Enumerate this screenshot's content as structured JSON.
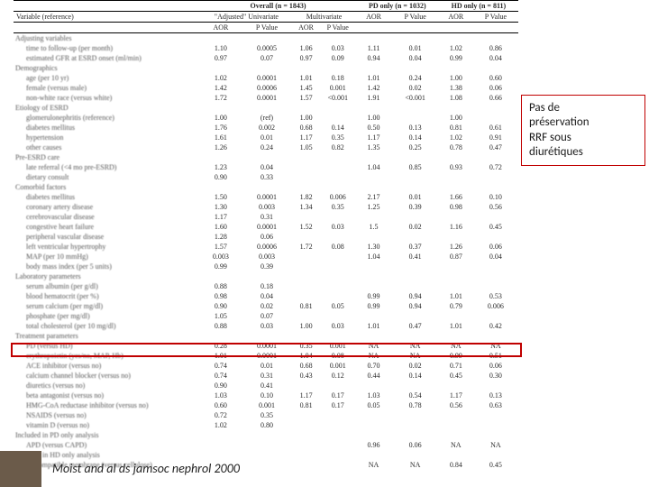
{
  "header": {
    "overall_label": "Overall (n = 1843)",
    "pd_label": "PD only (n = 1032)",
    "hd_label": "HD only (n = 811)",
    "variable_header": "Variable (reference)",
    "adjusted_label": "\"Adjusted\" Univariate",
    "multivariate_label": "Multivariate",
    "aor": "AOR",
    "pvalue": "P Value"
  },
  "sections": {
    "adjusting": "Adjusting variables",
    "demographics": "Demographics",
    "etiology": "Etiology of ESRD",
    "preesrd": "Pre-ESRD care",
    "comorbid": "Comorbid factors",
    "lab": "Laboratory parameters",
    "treatment": "Treatment parameters",
    "pd_only": "Included in PD only analysis",
    "hd_only": "Included in HD only analysis"
  },
  "rows": [
    {
      "label": "time to follow-up (per month)",
      "indent": true,
      "c": [
        "1.10",
        "0.0005",
        "1.06",
        "0.03",
        "1.11",
        "0.01",
        "1.02",
        "0.86"
      ]
    },
    {
      "label": "estimated GFR at ESRD onset (ml/min)",
      "indent": true,
      "c": [
        "0.97",
        "0.07",
        "0.97",
        "0.09",
        "0.94",
        "0.04",
        "0.99",
        "0.04"
      ]
    },
    {
      "section": "demographics"
    },
    {
      "label": "age (per 10 yr)",
      "indent": true,
      "c": [
        "1.02",
        "0.0001",
        "1.01",
        "0.18",
        "1.01",
        "0.24",
        "1.00",
        "0.60"
      ]
    },
    {
      "label": "female (versus male)",
      "indent": true,
      "c": [
        "1.42",
        "0.0006",
        "1.45",
        "0.001",
        "1.42",
        "0.02",
        "1.38",
        "0.06"
      ]
    },
    {
      "label": "non-white race (versus white)",
      "indent": true,
      "c": [
        "1.72",
        "0.0001",
        "1.57",
        "<0.001",
        "1.91",
        "<0.001",
        "1.08",
        "0.66"
      ]
    },
    {
      "section": "etiology"
    },
    {
      "label": "glomerulonephritis (reference)",
      "indent": true,
      "c": [
        "1.00",
        "(ref)",
        "1.00",
        "",
        "1.00",
        "",
        "1.00",
        ""
      ]
    },
    {
      "label": "diabetes mellitus",
      "indent": true,
      "c": [
        "1.76",
        "0.002",
        "0.68",
        "0.14",
        "0.50",
        "0.13",
        "0.81",
        "0.61"
      ]
    },
    {
      "label": "hypertension",
      "indent": true,
      "c": [
        "1.61",
        "0.01",
        "1.17",
        "0.35",
        "1.17",
        "0.14",
        "1.02",
        "0.91"
      ]
    },
    {
      "label": "other causes",
      "indent": true,
      "c": [
        "1.26",
        "0.24",
        "1.05",
        "0.82",
        "1.35",
        "0.25",
        "0.78",
        "0.47"
      ]
    },
    {
      "section": "preesrd"
    },
    {
      "label": "late referral (<4 mo pre-ESRD)",
      "indent": true,
      "c": [
        "1.23",
        "0.04",
        "",
        "",
        "1.04",
        "0.85",
        "0.93",
        "0.72"
      ]
    },
    {
      "label": "dietary consult",
      "indent": true,
      "c": [
        "0.90",
        "0.33",
        "",
        "",
        "",
        "",
        "",
        ""
      ]
    },
    {
      "section": "comorbid"
    },
    {
      "label": "diabetes mellitus",
      "indent": true,
      "c": [
        "1.50",
        "0.0001",
        "1.82",
        "0.006",
        "2.17",
        "0.01",
        "1.66",
        "0.10"
      ]
    },
    {
      "label": "coronary artery disease",
      "indent": true,
      "c": [
        "1.30",
        "0.003",
        "1.34",
        "0.35",
        "1.25",
        "0.39",
        "0.98",
        "0.56"
      ]
    },
    {
      "label": "cerebrovascular disease",
      "indent": true,
      "c": [
        "1.17",
        "0.31",
        "",
        "",
        "",
        "",
        "",
        ""
      ]
    },
    {
      "label": "congestive heart failure",
      "indent": true,
      "c": [
        "1.60",
        "0.0001",
        "1.52",
        "0.03",
        "1.5",
        "0.02",
        "1.16",
        "0.45"
      ]
    },
    {
      "label": "peripheral vascular disease",
      "indent": true,
      "c": [
        "1.28",
        "0.06",
        "",
        "",
        "",
        "",
        "",
        ""
      ]
    },
    {
      "label": "left ventricular hypertrophy",
      "indent": true,
      "c": [
        "1.57",
        "0.0006",
        "1.72",
        "0.08",
        "1.30",
        "0.37",
        "1.26",
        "0.06"
      ]
    },
    {
      "label": "MAP (per 10 mmHg)",
      "indent": true,
      "c": [
        "0.003",
        "0.003",
        "",
        "",
        "1.04",
        "0.41",
        "0.87",
        "0.04"
      ]
    },
    {
      "label": "body mass index (per 5 units)",
      "indent": true,
      "c": [
        "0.99",
        "0.39",
        "",
        "",
        "",
        "",
        "",
        ""
      ]
    },
    {
      "section": "lab"
    },
    {
      "label": "serum albumin (per g/dl)",
      "indent": true,
      "c": [
        "0.88",
        "0.18",
        "",
        "",
        "",
        "",
        "",
        ""
      ]
    },
    {
      "label": "blood hematocrit (per %)",
      "indent": true,
      "c": [
        "0.98",
        "0.04",
        "",
        "",
        "0.99",
        "0.94",
        "1.01",
        "0.53"
      ]
    },
    {
      "label": "serum calcium (per mg/dl)",
      "indent": true,
      "c": [
        "0.90",
        "0.02",
        "0.81",
        "0.05",
        "0.99",
        "0.94",
        "0.79",
        "0.006"
      ]
    },
    {
      "label": "phosphate (per mg/dl)",
      "indent": true,
      "c": [
        "1.05",
        "0.07",
        "",
        "",
        "",
        "",
        "",
        ""
      ]
    },
    {
      "label": "total cholesterol (per 10 mg/dl)",
      "indent": true,
      "c": [
        "0.88",
        "0.03",
        "1.00",
        "0.03",
        "1.01",
        "0.47",
        "1.01",
        "0.42"
      ]
    },
    {
      "section": "treatment"
    },
    {
      "label": "PD (versus HD)",
      "indent": true,
      "c": [
        "0.28",
        "0.0001",
        "0.35",
        "0.001",
        "NA",
        "NA",
        "NA",
        "NA"
      ]
    },
    {
      "label": "erythropoietin (yes/no, MAP, Hb)",
      "indent": true,
      "c": [
        "1.01",
        "0.0001",
        "1.04",
        "0.08",
        "NA",
        "NA",
        "0.99",
        "0.51"
      ]
    },
    {
      "label": "ACE inhibitor (versus no)",
      "indent": true,
      "c": [
        "0.74",
        "0.01",
        "0.68",
        "0.001",
        "0.70",
        "0.02",
        "0.71",
        "0.06"
      ]
    },
    {
      "label": "calcium channel blocker (versus no)",
      "indent": true,
      "c": [
        "0.74",
        "0.31",
        "0.43",
        "0.12",
        "0.44",
        "0.14",
        "0.45",
        "0.30"
      ]
    },
    {
      "label": "diuretics (versus no)",
      "indent": true,
      "highlight": true,
      "c": [
        "0.90",
        "0.41",
        "",
        "",
        "",
        "",
        "",
        ""
      ]
    },
    {
      "label": "beta antagonist (versus no)",
      "indent": true,
      "c": [
        "1.03",
        "0.10",
        "1.17",
        "0.17",
        "1.03",
        "0.54",
        "1.17",
        "0.13"
      ]
    },
    {
      "label": "HMG-CoA reductase inhibitor (versus no)",
      "indent": true,
      "c": [
        "0.60",
        "0.001",
        "0.81",
        "0.17",
        "0.05",
        "0.78",
        "0.56",
        "0.63"
      ]
    },
    {
      "label": "NSAIDS (versus no)",
      "indent": true,
      "c": [
        "0.72",
        "0.35",
        "",
        "",
        "",
        "",
        "",
        ""
      ]
    },
    {
      "label": "vitamin D (versus no)",
      "indent": true,
      "c": [
        "1.02",
        "0.80",
        "",
        "",
        "",
        "",
        "",
        ""
      ]
    },
    {
      "section": "pd_only"
    },
    {
      "label": "APD (versus CAPD)",
      "indent": true,
      "c": [
        "",
        "",
        "",
        "",
        "0.96",
        "0.06",
        "NA",
        "NA"
      ]
    },
    {
      "section": "hd_only"
    },
    {
      "label": "biocompatible membrane (versus cellulose)",
      "indent": true,
      "c": [
        "",
        "",
        "",
        "",
        "NA",
        "NA",
        "0.84",
        "0.45"
      ]
    }
  ],
  "callout": {
    "line1": "Pas de",
    "line2": "préservation",
    "line3": "RRF sous",
    "line4": "diurétiques"
  },
  "citation": "Moist and al ds jamsoc nephrol 2000",
  "colors": {
    "red": "#c00000",
    "accent": "#6b5b4a"
  }
}
